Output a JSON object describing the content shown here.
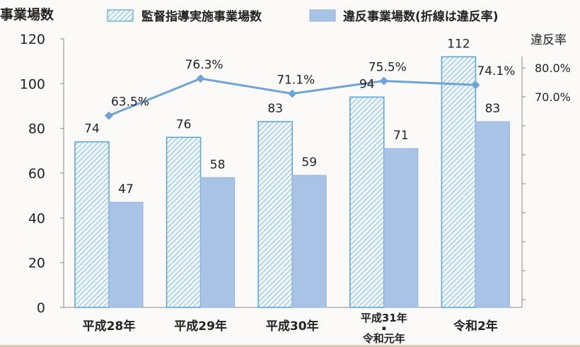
{
  "chart_data": {
    "type": "bar",
    "ylabel": "事業場数",
    "y2label": "違反率",
    "ylim": [
      0,
      120
    ],
    "yticks": [
      0,
      20,
      40,
      60,
      80,
      100,
      120
    ],
    "y2lim": [
      0,
      100
    ],
    "y2ticks": [
      "70.0%",
      "80.0%"
    ],
    "grid": false,
    "legend_position": "top",
    "categories": [
      "平成28年",
      "平成29年",
      "平成30年",
      "平成31年・令和元年",
      "令和2年"
    ],
    "category_label_lines": [
      [
        "平成28年"
      ],
      [
        "平成29年"
      ],
      [
        "平成30年"
      ],
      [
        "平成31年",
        "▪",
        "令和元年"
      ],
      [
        "令和2年"
      ]
    ],
    "series": [
      {
        "name": "監督指導実施事業場数",
        "values": [
          74,
          76,
          83,
          94,
          112
        ],
        "color": "#5aa3d8",
        "fill": "hatched"
      },
      {
        "name": "違反事業場数(折線は違反率)",
        "values": [
          47,
          58,
          59,
          71,
          83
        ],
        "color": "#a8c3e6",
        "fill": "solid"
      }
    ],
    "line_series": {
      "values": [
        63.5,
        76.3,
        71.1,
        75.5,
        74.1
      ],
      "labels": [
        "63.5%",
        "76.3%",
        "71.1%",
        "75.5%",
        "74.1%"
      ],
      "color": "#6ea3d6"
    }
  }
}
